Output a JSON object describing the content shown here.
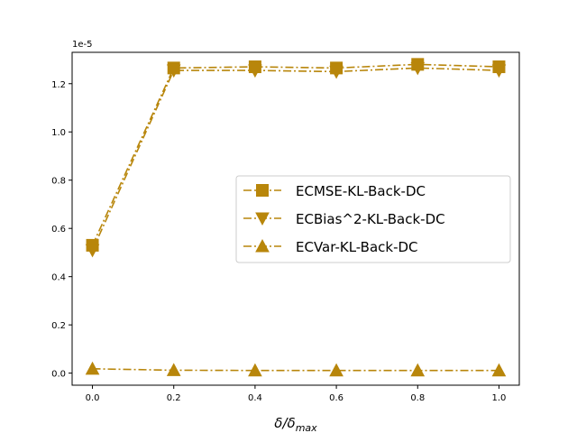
{
  "chart_data": {
    "type": "line",
    "x": [
      0.0,
      0.2,
      0.4,
      0.6,
      0.8,
      1.0
    ],
    "x_ticks": [
      "0.0",
      "0.2",
      "0.4",
      "0.6",
      "0.8",
      "1.0"
    ],
    "y_ticks": [
      "0.0",
      "0.2",
      "0.4",
      "0.6",
      "0.8",
      "1.0",
      "1.2"
    ],
    "y_offset_label": "1e-5",
    "y_scale_factor": 1e-05,
    "xlim": [
      -0.05,
      1.05
    ],
    "ylim": [
      -0.05,
      1.33
    ],
    "xlabel": "δ/δmax",
    "grid": false,
    "legend_position": "center-right",
    "color": "#b8860b",
    "series": [
      {
        "name": "ECMSE-KL-Back-DC",
        "marker": "square",
        "values": [
          0.53,
          1.265,
          1.27,
          1.265,
          1.28,
          1.27
        ]
      },
      {
        "name": "ECBias^2-KL-Back-DC",
        "marker": "triangle-down",
        "values": [
          0.51,
          1.255,
          1.255,
          1.25,
          1.265,
          1.255
        ]
      },
      {
        "name": "ECVar-KL-Back-DC",
        "marker": "triangle-up",
        "values": [
          0.018,
          0.012,
          0.011,
          0.011,
          0.011,
          0.011
        ]
      }
    ]
  }
}
